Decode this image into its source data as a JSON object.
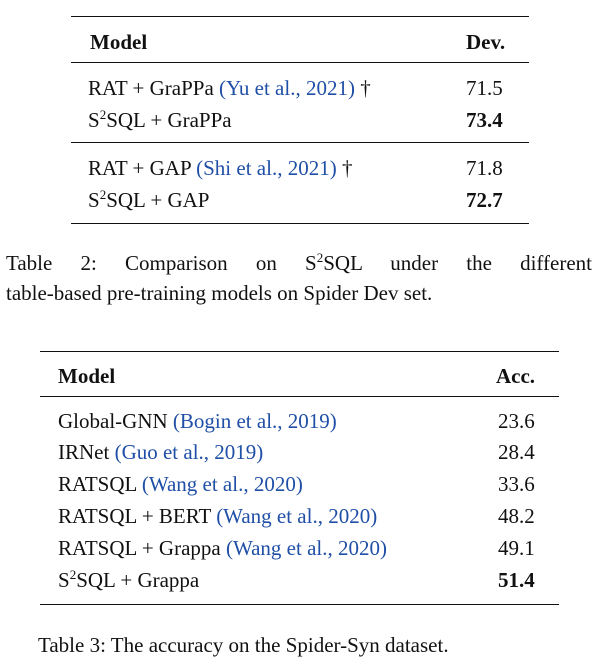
{
  "table2": {
    "header": {
      "model": "Model",
      "dev": "Dev."
    },
    "groups": [
      [
        {
          "model_pre": "RAT + GraPPa ",
          "cite": "(Yu et al., 2021)",
          "model_post": " †",
          "value": "71.5",
          "bold": false
        },
        {
          "model_pre": "S",
          "sup": "2",
          "model_post2": "SQL + GraPPa",
          "value": "73.4",
          "bold": true
        }
      ],
      [
        {
          "model_pre": "RAT + GAP ",
          "cite": "(Shi et al., 2021)",
          "model_post": " †",
          "value": "71.8",
          "bold": false
        },
        {
          "model_pre": "S",
          "sup": "2",
          "model_post2": "SQL + GAP",
          "value": "72.7",
          "bold": true
        }
      ]
    ],
    "caption_pre": "Table 2: Comparison on S",
    "caption_sup": "2",
    "caption_post": "SQL under the different",
    "caption_line2": "table-based pre-training models on Spider Dev set."
  },
  "table3": {
    "header": {
      "model": "Model",
      "acc": "Acc."
    },
    "rows": [
      {
        "model_pre": "Global-GNN ",
        "cite": "(Bogin et al., 2019)",
        "value": "23.6"
      },
      {
        "model_pre": "IRNet ",
        "cite": "(Guo et al., 2019)",
        "value": "28.4"
      },
      {
        "model_pre": "RATSQL ",
        "cite": "(Wang et al., 2020)",
        "value": "33.6"
      },
      {
        "model_pre": "RATSQL + BERT ",
        "cite": "(Wang et al., 2020)",
        "value": "48.2"
      },
      {
        "model_pre": "RATSQL + Grappa ",
        "cite": "(Wang et al., 2020)",
        "value": "49.1"
      }
    ],
    "last_row": {
      "model_pre": "S",
      "sup": "2",
      "model_post": "SQL + Grappa",
      "value": "51.4"
    },
    "caption": "Table 3: The accuracy on the Spider-Syn dataset."
  }
}
